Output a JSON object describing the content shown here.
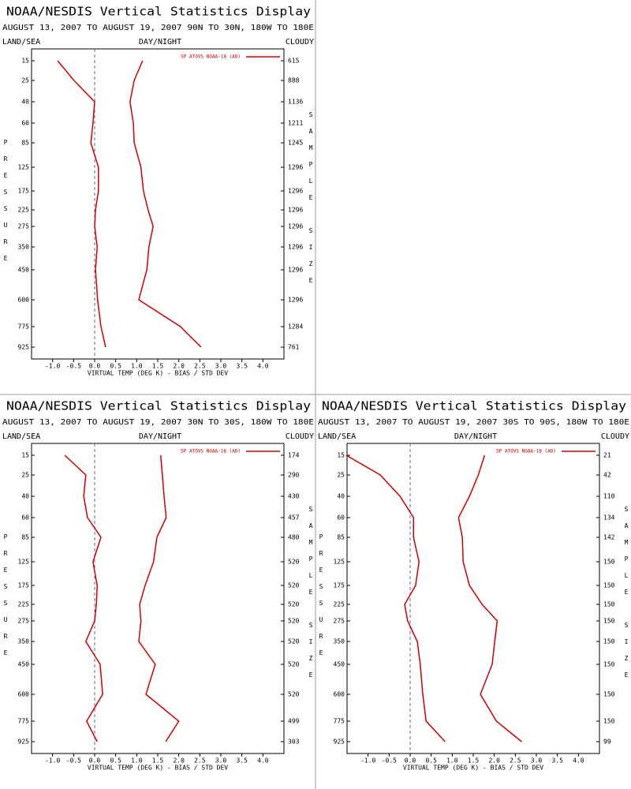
{
  "chart_data": [
    {
      "type": "line",
      "title": "NOAA/NESDIS Vertical Statistics Display",
      "subtitle": "AUGUST 13, 2007 TO AUGUST 19, 2007 90N TO 30N, 180W TO 180E",
      "header_left": "LAND/SEA",
      "header_center": "DAY/NIGHT",
      "header_right": "CLOUDY",
      "xlabel": "VIRTUAL TEMP (DEG K) - BIAS / STD DEV",
      "ylabel": "PRESSURE",
      "y2label": "SAMPLE SIZE",
      "categories": [
        15,
        25,
        40,
        60,
        85,
        125,
        175,
        225,
        275,
        350,
        450,
        600,
        775,
        925
      ],
      "sample_size": [
        615,
        888,
        1136,
        1211,
        1245,
        1296,
        1296,
        1296,
        1296,
        1296,
        1296,
        1296,
        1284,
        761
      ],
      "xlim": [
        -1.5,
        4.5
      ],
      "xticks": [
        {
          "value": -1,
          "label": "-1.0"
        },
        -0.5,
        {
          "value": 0,
          "label": "0.0"
        },
        0.5,
        {
          "value": 1,
          "label": "1.0"
        },
        1.5,
        {
          "value": 2,
          "label": "2.0"
        },
        2.5,
        {
          "value": 3,
          "label": "3.0"
        },
        3.5,
        {
          "value": 4,
          "label": "4.0"
        }
      ],
      "series": [
        {
          "name": "SP ATOVS NOAA-18 (AD)",
          "color": "#d40000",
          "values": [
            -0.88,
            -0.49,
            0.0,
            -0.04,
            -0.09,
            0.09,
            0.09,
            0.02,
            0.0,
            0.06,
            0.02,
            0.07,
            0.15,
            0.26
          ]
        },
        {
          "color": "#d40000",
          "values": [
            1.14,
            0.94,
            0.84,
            0.92,
            0.94,
            1.1,
            1.16,
            1.27,
            1.39,
            1.29,
            1.24,
            1.05,
            2.04,
            2.53
          ]
        }
      ]
    },
    {
      "type": "line",
      "title": "NOAA/NESDIS Vertical Statistics Display",
      "subtitle": "AUGUST 13, 2007 TO AUGUST 19, 2007 30N TO 30S, 180W TO 180E",
      "header_left": "LAND/SEA",
      "header_center": "DAY/NIGHT",
      "header_right": "CLOUDY",
      "xlabel": "VIRTUAL TEMP (DEG K) - BIAS / STD DEV",
      "ylabel": "PRESSURE",
      "y2label": "SAMPLE SIZE",
      "categories": [
        15,
        25,
        40,
        60,
        85,
        125,
        175,
        225,
        275,
        350,
        450,
        600,
        775,
        925
      ],
      "sample_size": [
        174,
        290,
        430,
        457,
        480,
        520,
        520,
        520,
        520,
        520,
        520,
        520,
        499,
        303
      ],
      "xlim": [
        -1.5,
        4.5
      ],
      "xticks": [
        {
          "value": -1,
          "label": "-1.0"
        },
        -0.5,
        {
          "value": 0,
          "label": "0.0"
        },
        0.5,
        {
          "value": 1,
          "label": "1.0"
        },
        1.5,
        {
          "value": 2,
          "label": "2.0"
        },
        2.5,
        {
          "value": 3,
          "label": "3.0"
        },
        3.5,
        {
          "value": 4,
          "label": "4.0"
        }
      ],
      "series": [
        {
          "name": "SP ATOVS NOAA-18 (AD)",
          "color": "#d40000",
          "values": [
            -0.71,
            -0.21,
            -0.26,
            -0.17,
            0.15,
            -0.04,
            0.06,
            0.04,
            0.0,
            -0.21,
            0.13,
            0.19,
            -0.19,
            0.06
          ]
        },
        {
          "color": "#d40000",
          "values": [
            1.57,
            1.61,
            1.65,
            1.7,
            1.48,
            1.4,
            1.2,
            1.07,
            1.1,
            1.05,
            1.44,
            1.22,
            2.0,
            1.69
          ]
        }
      ]
    },
    {
      "type": "line",
      "title": "NOAA/NESDIS Vertical Statistics Display",
      "subtitle": "AUGUST 13, 2007 TO AUGUST 19, 2007 30S TO 90S, 180W TO 180E",
      "header_left": "LAND/SEA",
      "header_center": "DAY/NIGHT",
      "header_right": "CLOUDY",
      "xlabel": "VIRTUAL TEMP (DEG K) - BIAS / STD DEV",
      "ylabel": "PRESSURE",
      "y2label": "SAMPLE SIZE",
      "categories": [
        15,
        25,
        40,
        60,
        85,
        125,
        175,
        225,
        275,
        350,
        450,
        600,
        775,
        925
      ],
      "sample_size": [
        21,
        42,
        110,
        134,
        142,
        150,
        150,
        150,
        150,
        150,
        150,
        150,
        150,
        99
      ],
      "xlim": [
        -1.5,
        4.5
      ],
      "xticks": [
        {
          "value": -1,
          "label": "-1.0"
        },
        -0.5,
        {
          "value": 0,
          "label": "0.0"
        },
        0.5,
        {
          "value": 1,
          "label": "1.0"
        },
        1.5,
        {
          "value": 2,
          "label": "2.0"
        },
        2.5,
        {
          "value": 3,
          "label": "3.0"
        },
        3.5,
        {
          "value": 4,
          "label": "4.0"
        }
      ],
      "series": [
        {
          "name": "SP ATOVS NOAA-18 (AD)",
          "color": "#d40000",
          "values": [
            -1.52,
            -0.71,
            -0.24,
            0.08,
            0.08,
            0.21,
            0.13,
            -0.13,
            -0.06,
            0.17,
            0.24,
            0.3,
            0.38,
            0.83
          ]
        },
        {
          "color": "#d40000",
          "values": [
            1.77,
            1.62,
            1.41,
            1.15,
            1.24,
            1.26,
            1.41,
            1.71,
            2.07,
            2.01,
            1.95,
            1.67,
            2.05,
            2.65
          ]
        }
      ]
    }
  ]
}
